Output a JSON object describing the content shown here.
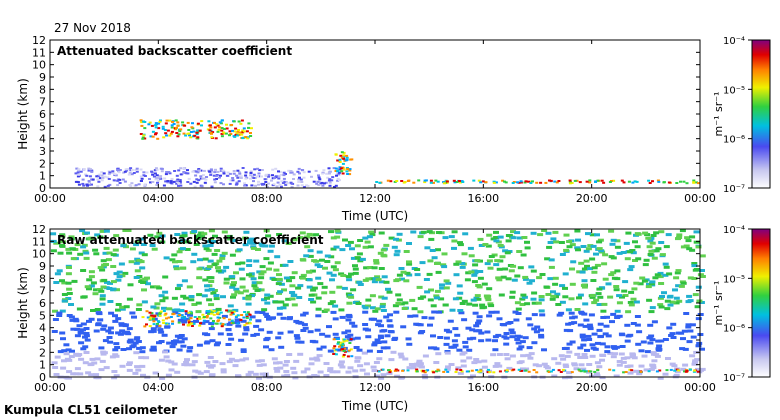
{
  "date_label": "27 Nov 2018",
  "footer_label": "Kumpula CL51 ceilometer",
  "chart_data": [
    {
      "type": "heatmap",
      "title": "Attenuated backscatter coefficient",
      "xlabel": "Time (UTC)",
      "ylabel": "Height (km)",
      "x_ticks": [
        "00:00",
        "04:00",
        "08:00",
        "12:00",
        "16:00",
        "20:00",
        "00:00"
      ],
      "x_range_hours": [
        0,
        24
      ],
      "y_ticks": [
        0,
        1,
        2,
        3,
        4,
        5,
        6,
        7,
        8,
        9,
        10,
        11,
        12
      ],
      "ylim_km": [
        0,
        12
      ],
      "colorbar": {
        "unit_label": "m⁻¹ sr⁻¹",
        "scale": "log",
        "ticks": [
          "10⁻⁴",
          "10⁻⁵",
          "10⁻⁶",
          "10⁻⁷"
        ]
      },
      "features": [
        {
          "name": "boundary layer",
          "t_start": 0.9,
          "t_end": 10.8,
          "h_bottom_km": 0,
          "h_top_km": 1.7,
          "level": "low"
        },
        {
          "name": "elevated cloud",
          "t_start": 3.3,
          "t_end": 7.5,
          "h_bottom_km": 3.9,
          "h_top_km": 5.6,
          "level": "high"
        },
        {
          "name": "precipitation",
          "t_start": 10.5,
          "t_end": 11.2,
          "h_bottom_km": 1.0,
          "h_top_km": 3.0,
          "level": "high"
        },
        {
          "name": "low cloud layer",
          "t_start": 12.0,
          "t_end": 24.0,
          "h_bottom_km": 0.3,
          "h_top_km": 0.7,
          "level": "high"
        }
      ]
    },
    {
      "type": "heatmap",
      "title": "Raw attenuated backscatter coefficient",
      "xlabel": "Time (UTC)",
      "ylabel": "Height (km)",
      "x_ticks": [
        "00:00",
        "04:00",
        "08:00",
        "12:00",
        "16:00",
        "20:00",
        "00:00"
      ],
      "x_range_hours": [
        0,
        24
      ],
      "y_ticks": [
        0,
        1,
        2,
        3,
        4,
        5,
        6,
        7,
        8,
        9,
        10,
        11,
        12
      ],
      "ylim_km": [
        0,
        12
      ],
      "colorbar": {
        "unit_label": "m⁻¹ sr⁻¹",
        "scale": "log",
        "ticks": [
          "10⁻⁴",
          "10⁻⁵",
          "10⁻⁶",
          "10⁻⁷"
        ]
      },
      "features": [
        {
          "name": "noise background",
          "t_start": 0,
          "t_end": 24,
          "h_bottom_km": 0,
          "h_top_km": 12,
          "level": "noise"
        },
        {
          "name": "elevated cloud",
          "t_start": 3.3,
          "t_end": 7.5,
          "h_bottom_km": 4.0,
          "h_top_km": 5.5,
          "level": "high"
        },
        {
          "name": "precipitation",
          "t_start": 10.4,
          "t_end": 11.2,
          "h_bottom_km": 1.5,
          "h_top_km": 3.2,
          "level": "high"
        },
        {
          "name": "low cloud layer",
          "t_start": 12.0,
          "t_end": 24.0,
          "h_bottom_km": 0.3,
          "h_top_km": 0.7,
          "level": "high"
        }
      ]
    }
  ]
}
